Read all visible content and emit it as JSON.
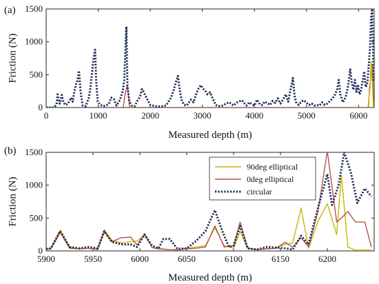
{
  "chart_data": [
    {
      "panel": "(a)",
      "type": "line",
      "xlabel": "Measured depth (m)",
      "ylabel": "Friction (N)",
      "xlim": [
        0,
        6300
      ],
      "ylim": [
        0,
        1500
      ],
      "xticks": [
        0,
        1000,
        2000,
        3000,
        4000,
        5000,
        6000
      ],
      "yticks": [
        0,
        500,
        1000,
        1500
      ],
      "grid": false,
      "series": [
        {
          "color": "#1f2d5a",
          "style": "dotted",
          "points": [
            [
              0,
              0
            ],
            [
              150,
              0
            ],
            [
              200,
              50
            ],
            [
              220,
              200
            ],
            [
              240,
              120
            ],
            [
              260,
              60
            ],
            [
              300,
              190
            ],
            [
              330,
              80
            ],
            [
              370,
              40
            ],
            [
              420,
              60
            ],
            [
              480,
              150
            ],
            [
              510,
              90
            ],
            [
              540,
              240
            ],
            [
              570,
              340
            ],
            [
              600,
              410
            ],
            [
              630,
              560
            ],
            [
              660,
              250
            ],
            [
              700,
              30
            ],
            [
              760,
              20
            ],
            [
              820,
              150
            ],
            [
              850,
              300
            ],
            [
              880,
              520
            ],
            [
              910,
              750
            ],
            [
              940,
              880
            ],
            [
              960,
              420
            ],
            [
              990,
              90
            ],
            [
              1040,
              40
            ],
            [
              1100,
              20
            ],
            [
              1200,
              50
            ],
            [
              1250,
              150
            ],
            [
              1300,
              130
            ],
            [
              1350,
              30
            ],
            [
              1420,
              120
            ],
            [
              1470,
              250
            ],
            [
              1500,
              420
            ],
            [
              1540,
              1230
            ],
            [
              1560,
              330
            ],
            [
              1600,
              90
            ],
            [
              1640,
              30
            ],
            [
              1700,
              20
            ],
            [
              1750,
              100
            ],
            [
              1800,
              160
            ],
            [
              1840,
              280
            ],
            [
              1870,
              240
            ],
            [
              1900,
              190
            ],
            [
              1950,
              110
            ],
            [
              2000,
              40
            ],
            [
              2100,
              20
            ],
            [
              2200,
              15
            ],
            [
              2300,
              30
            ],
            [
              2400,
              150
            ],
            [
              2450,
              270
            ],
            [
              2490,
              380
            ],
            [
              2530,
              480
            ],
            [
              2560,
              300
            ],
            [
              2600,
              120
            ],
            [
              2650,
              40
            ],
            [
              2700,
              30
            ],
            [
              2780,
              120
            ],
            [
              2830,
              80
            ],
            [
              2880,
              200
            ],
            [
              2930,
              300
            ],
            [
              2970,
              340
            ],
            [
              3010,
              290
            ],
            [
              3060,
              250
            ],
            [
              3100,
              200
            ],
            [
              3150,
              230
            ],
            [
              3200,
              130
            ],
            [
              3260,
              40
            ],
            [
              3300,
              20
            ],
            [
              3400,
              30
            ],
            [
              3450,
              60
            ],
            [
              3520,
              80
            ],
            [
              3560,
              50
            ],
            [
              3600,
              30
            ],
            [
              3650,
              70
            ],
            [
              3700,
              90
            ],
            [
              3760,
              110
            ],
            [
              3800,
              70
            ],
            [
              3850,
              30
            ],
            [
              3900,
              80
            ],
            [
              3950,
              50
            ],
            [
              4000,
              30
            ],
            [
              4050,
              120
            ],
            [
              4100,
              50
            ],
            [
              4150,
              40
            ],
            [
              4200,
              90
            ],
            [
              4260,
              60
            ],
            [
              4300,
              40
            ],
            [
              4350,
              100
            ],
            [
              4400,
              70
            ],
            [
              4450,
              140
            ],
            [
              4500,
              60
            ],
            [
              4550,
              120
            ],
            [
              4600,
              200
            ],
            [
              4650,
              90
            ],
            [
              4700,
              300
            ],
            [
              4740,
              450
            ],
            [
              4770,
              180
            ],
            [
              4800,
              80
            ],
            [
              4850,
              40
            ],
            [
              4900,
              90
            ],
            [
              4950,
              110
            ],
            [
              5000,
              70
            ],
            [
              5050,
              40
            ],
            [
              5100,
              60
            ],
            [
              5150,
              30
            ],
            [
              5200,
              40
            ],
            [
              5250,
              30
            ],
            [
              5300,
              80
            ],
            [
              5350,
              40
            ],
            [
              5400,
              60
            ],
            [
              5450,
              100
            ],
            [
              5500,
              140
            ],
            [
              5550,
              200
            ],
            [
              5590,
              280
            ],
            [
              5620,
              420
            ],
            [
              5650,
              200
            ],
            [
              5700,
              80
            ],
            [
              5750,
              150
            ],
            [
              5800,
              330
            ],
            [
              5840,
              580
            ],
            [
              5870,
              380
            ],
            [
              5900,
              270
            ],
            [
              5930,
              420
            ],
            [
              5960,
              240
            ],
            [
              5990,
              330
            ],
            [
              6020,
              200
            ],
            [
              6050,
              270
            ],
            [
              6080,
              410
            ],
            [
              6110,
              550
            ],
            [
              6140,
              310
            ],
            [
              6170,
              380
            ],
            [
              6200,
              680
            ],
            [
              6220,
              920
            ],
            [
              6240,
              1350
            ],
            [
              6260,
              1500
            ],
            [
              6275,
              1000
            ],
            [
              6290,
              400
            ]
          ]
        },
        {
          "color": "#b5524a",
          "style": "solid",
          "points": [
            [
              1480,
              0
            ],
            [
              1520,
              220
            ],
            [
              1560,
              340
            ],
            [
              1600,
              0
            ],
            [
              6190,
              0
            ],
            [
              6210,
              300
            ],
            [
              6230,
              420
            ],
            [
              6250,
              660
            ],
            [
              6270,
              640
            ],
            [
              6290,
              0
            ]
          ]
        },
        {
          "color": "#c8b400",
          "style": "solid",
          "points": [
            [
              6180,
              0
            ],
            [
              6200,
              150
            ],
            [
              6220,
              300
            ],
            [
              6240,
              700
            ],
            [
              6255,
              520
            ],
            [
              6270,
              300
            ],
            [
              6285,
              0
            ]
          ]
        }
      ]
    },
    {
      "panel": "(b)",
      "type": "line",
      "xlabel": "Measured depth (m)",
      "ylabel": "Friction (N)",
      "xlim": [
        5900,
        6250
      ],
      "ylim": [
        0,
        1500
      ],
      "xticks": [
        5900,
        5950,
        6000,
        6050,
        6100,
        6150,
        6200
      ],
      "yticks": [
        0,
        500,
        1000,
        1500
      ],
      "grid": false,
      "legend_position": "top-center-right",
      "series": [
        {
          "name": "90deg elliptical",
          "color": "#c8b400",
          "style": "solid",
          "x": [
            5900,
            5905,
            5915,
            5925,
            5935,
            5945,
            5955,
            5962,
            5970,
            5980,
            5990,
            5997,
            6005,
            6013,
            6020,
            6030,
            6040,
            6050,
            6060,
            6070,
            6080,
            6090,
            6100,
            6107,
            6115,
            6125,
            6135,
            6145,
            6155,
            6163,
            6172,
            6180,
            6190,
            6200,
            6210,
            6215,
            6222,
            6230,
            6240,
            6247
          ],
          "y": [
            30,
            40,
            320,
            60,
            30,
            40,
            30,
            320,
            160,
            120,
            140,
            150,
            240,
            50,
            40,
            20,
            15,
            40,
            60,
            80,
            350,
            80,
            40,
            300,
            40,
            20,
            30,
            40,
            100,
            120,
            650,
            40,
            450,
            720,
            250,
            1150,
            60,
            10,
            10,
            10
          ]
        },
        {
          "name": "0deg elliptical",
          "color": "#b5524a",
          "style": "solid",
          "x": [
            5900,
            5905,
            5915,
            5925,
            5935,
            5945,
            5955,
            5962,
            5970,
            5980,
            5990,
            5997,
            6005,
            6013,
            6020,
            6030,
            6040,
            6050,
            6060,
            6070,
            6080,
            6090,
            6100,
            6107,
            6115,
            6125,
            6135,
            6145,
            6155,
            6163,
            6172,
            6180,
            6190,
            6200,
            6210,
            6215,
            6222,
            6230,
            6240,
            6247
          ],
          "y": [
            20,
            30,
            280,
            40,
            30,
            40,
            20,
            290,
            140,
            200,
            210,
            90,
            260,
            50,
            30,
            20,
            15,
            30,
            40,
            60,
            380,
            60,
            80,
            440,
            40,
            20,
            30,
            40,
            130,
            60,
            200,
            60,
            600,
            1520,
            440,
            500,
            600,
            440,
            440,
            60
          ]
        },
        {
          "name": "circular",
          "color": "#1f2d5a",
          "style": "dotted",
          "x": [
            5900,
            5905,
            5915,
            5925,
            5935,
            5945,
            5955,
            5962,
            5970,
            5980,
            5990,
            5997,
            6005,
            6013,
            6020,
            6025,
            6032,
            6040,
            6050,
            6060,
            6070,
            6080,
            6088,
            6095,
            6100,
            6107,
            6115,
            6125,
            6135,
            6145,
            6155,
            6163,
            6172,
            6180,
            6190,
            6200,
            6205,
            6212,
            6218,
            6225,
            6232,
            6240,
            6247
          ],
          "y": [
            30,
            40,
            300,
            60,
            40,
            60,
            40,
            300,
            140,
            100,
            100,
            60,
            250,
            80,
            40,
            180,
            180,
            30,
            40,
            150,
            300,
            620,
            300,
            60,
            80,
            380,
            40,
            20,
            60,
            50,
            40,
            20,
            230,
            100,
            650,
            1170,
            700,
            1000,
            1500,
            1200,
            730,
            950,
            830
          ]
        }
      ]
    }
  ]
}
